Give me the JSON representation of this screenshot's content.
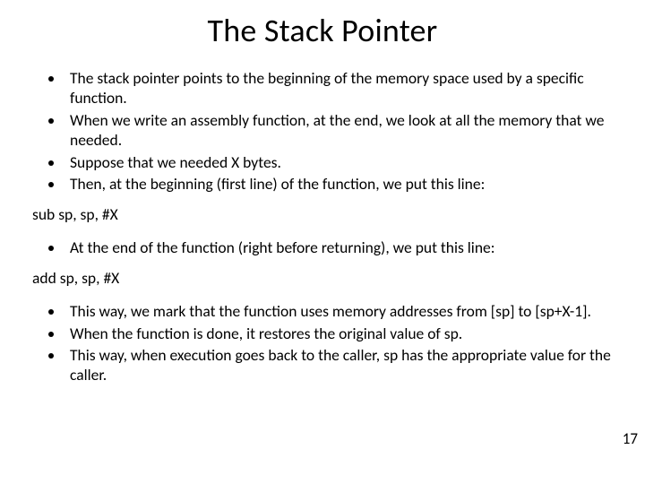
{
  "title": "The Stack Pointer",
  "bullets1": [
    "The stack pointer points to the beginning of the memory space used by a specific function.",
    "When we write an assembly function, at the end, we look at all the memory that we needed.",
    "Suppose that we needed X bytes.",
    "Then, at the beginning (first line) of the function, we put this line:"
  ],
  "code1": "sub sp, sp, #X",
  "bullets2": [
    "At the end of the function (right before returning), we put this line:"
  ],
  "code2": "add sp, sp, #X",
  "bullets3": [
    "This way, we mark that the function uses memory addresses from [sp] to [sp+X-1].",
    "When the function is done, it restores the original value of sp.",
    "This way, when execution goes back to the caller, sp has the appropriate value for the caller."
  ],
  "page_number": "17"
}
